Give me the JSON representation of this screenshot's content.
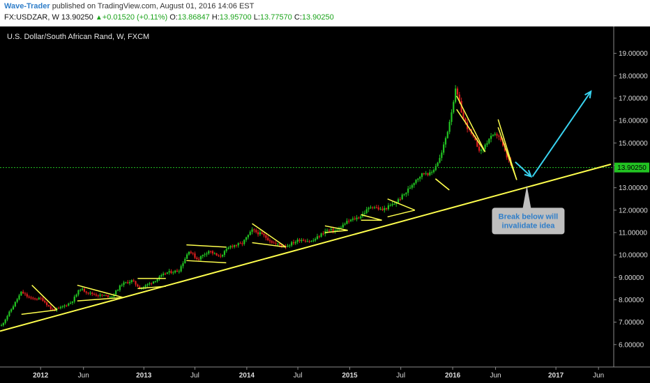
{
  "header": {
    "author": "Wave-Trader",
    "published_text": "published on TradingView.com, August 01, 2016 14:06 EST",
    "symbol": "FX:USDZAR, W",
    "last": "13.90250",
    "change": "+0.01520 (+0.11%)",
    "o_label": "O:",
    "o_value": "13.86847",
    "h_label": "H:",
    "h_value": "13.95700",
    "l_label": "L:",
    "l_value": "13.77570",
    "c_label": "C:",
    "c_value": "13.90250"
  },
  "colors": {
    "background": "#000000",
    "up": "#22c422",
    "down": "#e01e1e",
    "trendline": "#ffff4d",
    "arrow": "#39d3f0",
    "price_line": "#22c422"
  },
  "chart_data": {
    "type": "candlestick",
    "title": "U.S. Dollar/South African Rand, W, FXCM",
    "y_ticks": [
      "6.00000",
      "7.00000",
      "8.00000",
      "9.00000",
      "10.00000",
      "11.00000",
      "12.00000",
      "13.00000",
      "14.00000",
      "15.00000",
      "16.00000",
      "17.00000",
      "18.00000",
      "19.00000"
    ],
    "x_ticks": [
      "2012",
      "Jun",
      "2013",
      "Jul",
      "2014",
      "Jul",
      "2015",
      "Jul",
      "2016",
      "Jun",
      "2017",
      "Jun"
    ],
    "ylim": [
      5.0,
      20.2
    ],
    "xlim": [
      "2011-08-10",
      "2017-07-25"
    ],
    "current_price": 13.9025,
    "current_price_label": "13.90250",
    "series": [
      {
        "date": "2011-08-15",
        "close": 6.85
      },
      {
        "date": "2011-09-20",
        "close": 7.6
      },
      {
        "date": "2011-10-25",
        "close": 8.35
      },
      {
        "date": "2011-11-25",
        "close": 8.05
      },
      {
        "date": "2012-01-05",
        "close": 8.05
      },
      {
        "date": "2012-02-10",
        "close": 7.55
      },
      {
        "date": "2012-03-05",
        "close": 7.6
      },
      {
        "date": "2012-04-20",
        "close": 7.9
      },
      {
        "date": "2012-05-20",
        "close": 8.5
      },
      {
        "date": "2012-06-20",
        "close": 8.3
      },
      {
        "date": "2012-07-25",
        "close": 8.2
      },
      {
        "date": "2012-09-10",
        "close": 8.15
      },
      {
        "date": "2012-10-15",
        "close": 8.7
      },
      {
        "date": "2012-11-20",
        "close": 8.85
      },
      {
        "date": "2012-12-20",
        "close": 8.5
      },
      {
        "date": "2013-02-15",
        "close": 8.9
      },
      {
        "date": "2013-03-20",
        "close": 9.2
      },
      {
        "date": "2013-05-05",
        "close": 9.3
      },
      {
        "date": "2013-06-10",
        "close": 10.2
      },
      {
        "date": "2013-07-10",
        "close": 9.8
      },
      {
        "date": "2013-08-20",
        "close": 10.2
      },
      {
        "date": "2013-09-25",
        "close": 9.9
      },
      {
        "date": "2013-11-05",
        "close": 10.4
      },
      {
        "date": "2013-12-15",
        "close": 10.5
      },
      {
        "date": "2014-01-20",
        "close": 11.1
      },
      {
        "date": "2014-02-25",
        "close": 10.9
      },
      {
        "date": "2014-04-10",
        "close": 10.5
      },
      {
        "date": "2014-05-20",
        "close": 10.4
      },
      {
        "date": "2014-07-10",
        "close": 10.7
      },
      {
        "date": "2014-08-20",
        "close": 10.6
      },
      {
        "date": "2014-10-10",
        "close": 11.1
      },
      {
        "date": "2014-11-15",
        "close": 11.1
      },
      {
        "date": "2014-12-25",
        "close": 11.5
      },
      {
        "date": "2015-02-05",
        "close": 11.7
      },
      {
        "date": "2015-03-20",
        "close": 12.2
      },
      {
        "date": "2015-04-25",
        "close": 12.0
      },
      {
        "date": "2015-06-10",
        "close": 12.3
      },
      {
        "date": "2015-07-20",
        "close": 12.8
      },
      {
        "date": "2015-08-25",
        "close": 13.4
      },
      {
        "date": "2015-09-25",
        "close": 13.7
      },
      {
        "date": "2015-10-15",
        "close": 13.6
      },
      {
        "date": "2015-11-20",
        "close": 14.4
      },
      {
        "date": "2015-12-15",
        "close": 15.6
      },
      {
        "date": "2016-01-12",
        "close": 17.4
      },
      {
        "date": "2016-02-10",
        "close": 16.0
      },
      {
        "date": "2016-03-10",
        "close": 15.3
      },
      {
        "date": "2016-04-10",
        "close": 14.6
      },
      {
        "date": "2016-05-10",
        "close": 15.2
      },
      {
        "date": "2016-06-10",
        "close": 15.4
      },
      {
        "date": "2016-07-10",
        "close": 14.4
      },
      {
        "date": "2016-07-30",
        "close": 13.9
      }
    ],
    "trendline": {
      "from": {
        "date": "2011-08-10",
        "value": 6.6
      },
      "to": {
        "date": "2017-07-15",
        "value": 14.05
      }
    },
    "patterns": [
      {
        "a": {
          "date": "2011-12-01",
          "value": 8.65
        },
        "b": {
          "date": "2012-02-28",
          "value": 7.55
        },
        "c": {
          "date": "2011-10-25",
          "value": 7.35
        },
        "d": {
          "date": "2012-02-28",
          "value": 7.55
        }
      },
      {
        "a": {
          "date": "2012-05-10",
          "value": 8.65
        },
        "b": {
          "date": "2012-10-20",
          "value": 8.1
        },
        "c": {
          "date": "2012-05-10",
          "value": 7.95
        },
        "d": {
          "date": "2012-10-20",
          "value": 8.1
        }
      },
      {
        "a": {
          "date": "2012-12-10",
          "value": 8.95
        },
        "b": {
          "date": "2013-03-20",
          "value": 8.95
        },
        "c": {
          "date": "2012-12-10",
          "value": 8.5
        },
        "d": {
          "date": "2013-03-20",
          "value": 8.6
        }
      },
      {
        "a": {
          "date": "2013-06-01",
          "value": 10.45
        },
        "b": {
          "date": "2013-10-20",
          "value": 10.35
        },
        "c": {
          "date": "2013-06-01",
          "value": 9.75
        },
        "d": {
          "date": "2013-10-20",
          "value": 9.65
        }
      },
      {
        "a": {
          "date": "2014-01-20",
          "value": 11.4
        },
        "b": {
          "date": "2014-05-20",
          "value": 10.35
        },
        "c": {
          "date": "2014-01-20",
          "value": 10.55
        },
        "d": {
          "date": "2014-05-20",
          "value": 10.35
        }
      },
      {
        "a": {
          "date": "2014-10-05",
          "value": 11.3
        },
        "b": {
          "date": "2014-12-25",
          "value": 11.1
        },
        "c": {
          "date": "2014-10-05",
          "value": 11.0
        },
        "d": {
          "date": "2014-12-25",
          "value": 11.1
        }
      },
      {
        "a": {
          "date": "2015-02-10",
          "value": 11.8
        },
        "b": {
          "date": "2015-04-25",
          "value": 11.55
        },
        "c": {
          "date": "2015-02-10",
          "value": 11.55
        },
        "d": {
          "date": "2015-04-25",
          "value": 11.55
        }
      },
      {
        "a": {
          "date": "2015-05-15",
          "value": 12.5
        },
        "b": {
          "date": "2015-08-20",
          "value": 12.0
        },
        "c": {
          "date": "2015-05-15",
          "value": 11.7
        },
        "d": {
          "date": "2015-08-20",
          "value": 12.0
        }
      },
      {
        "a": {
          "date": "2015-11-01",
          "value": 13.4
        },
        "b": {
          "date": "2015-12-20",
          "value": 12.9
        },
        "c": {
          "date": "2015-11-01",
          "value": 13.4
        },
        "d": {
          "date": "2015-12-20",
          "value": 12.9
        }
      },
      {
        "a": {
          "date": "2016-01-15",
          "value": 17.1
        },
        "b": {
          "date": "2016-04-25",
          "value": 14.6
        },
        "c": {
          "date": "2016-01-15",
          "value": 16.5
        },
        "d": {
          "date": "2016-04-25",
          "value": 14.6
        }
      },
      {
        "a": {
          "date": "2016-06-10",
          "value": 16.05
        },
        "b": {
          "date": "2016-08-15",
          "value": 13.35
        },
        "c": {
          "date": "2016-06-10",
          "value": 15.7
        },
        "d": {
          "date": "2016-08-15",
          "value": 13.35
        }
      }
    ],
    "arrow_down": {
      "from": {
        "date": "2016-08-10",
        "value": 14.15
      },
      "to": {
        "date": "2016-10-05",
        "value": 13.5
      }
    },
    "arrow_up": {
      "from": {
        "date": "2016-10-10",
        "value": 13.5
      },
      "to": {
        "date": "2017-05-05",
        "value": 17.3
      }
    },
    "annotation": {
      "text_line1": "Break below will",
      "text_line2": "invalidate idea",
      "pointer": {
        "date": "2016-09-20",
        "value": 13.1
      }
    }
  }
}
